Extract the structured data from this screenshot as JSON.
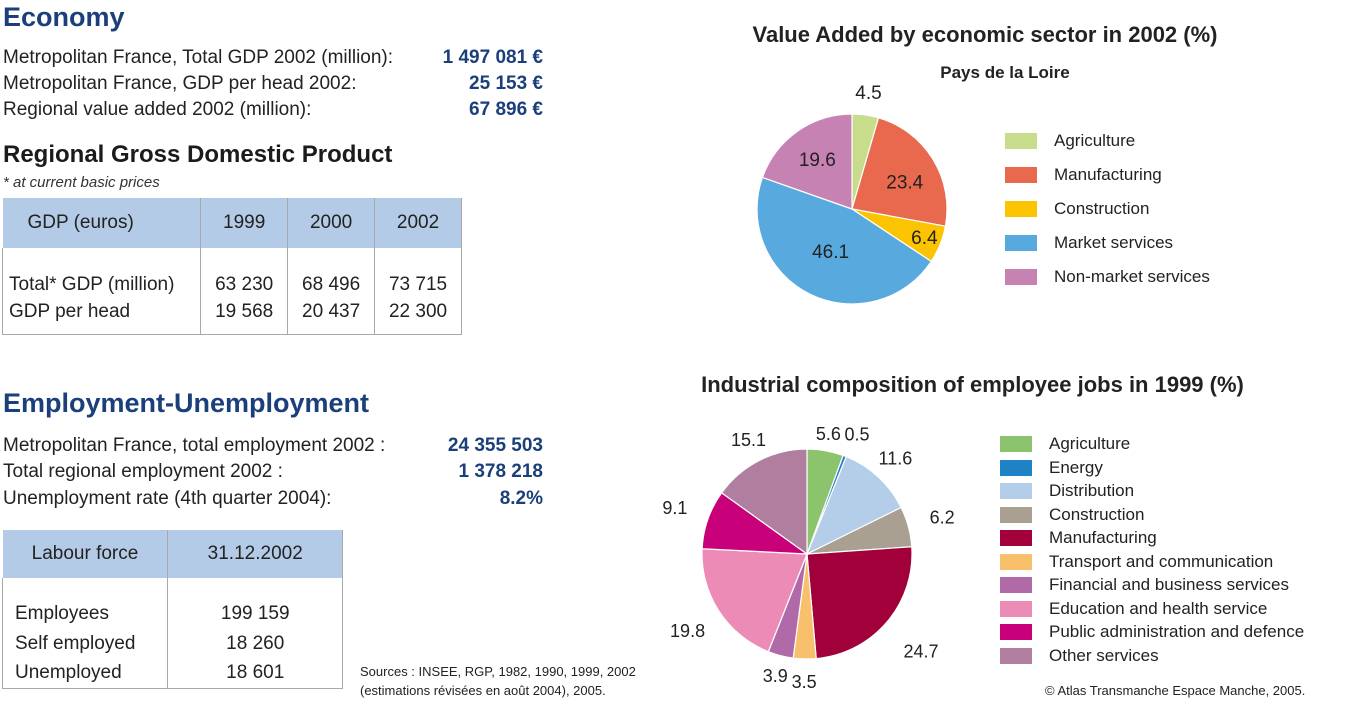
{
  "economy": {
    "title": "Economy",
    "rows": [
      {
        "label": "Metropolitan France, Total GDP 2002 (million):",
        "value": "1 497 081 €"
      },
      {
        "label": "Metropolitan France, GDP per head 2002:",
        "value": "25 153 €"
      },
      {
        "label": "Regional value added 2002 (million):",
        "value": "67 896 €"
      }
    ]
  },
  "gdp_table": {
    "title": "Regional Gross Domestic Product",
    "note": "* at current basic prices",
    "headers": [
      "GDP (euros)",
      "1999",
      "2000",
      "2002"
    ],
    "rows": [
      [
        "Total* GDP (million)",
        "63 230",
        "68 496",
        "73 715"
      ],
      [
        "GDP per head",
        "19 568",
        "20 437",
        "22 300"
      ]
    ]
  },
  "employment": {
    "title": "Employment-Unemployment",
    "rows": [
      {
        "label": "Metropolitan France, total employment 2002 :",
        "value": "24 355 503"
      },
      {
        "label": "Total regional employment 2002 :",
        "value": "1 378 218"
      },
      {
        "label": "Unemployment rate (4th quarter 2004):",
        "value": "8.2%"
      }
    ]
  },
  "labour_table": {
    "headers": [
      "Labour force",
      "31.12.2002"
    ],
    "rows": [
      [
        "Employees",
        "199 159"
      ],
      [
        "Self employed",
        "18 260"
      ],
      [
        "Unemployed",
        "18 601"
      ]
    ]
  },
  "sources": {
    "line1": "Sources : INSEE, RGP, 1982, 1990, 1999, 2002",
    "line2": "(estimations révisées en août 2004), 2005."
  },
  "copyright": "© Atlas Transmanche Espace Manche, 2005.",
  "chart_data": [
    {
      "type": "pie",
      "title": "Value Added by economic sector in 2002 (%)",
      "subtitle": "Pays de la Loire",
      "legend_position": "right",
      "slices": [
        {
          "name": "Agriculture",
          "value": 4.5,
          "label": "4.5",
          "color": "#c8dd8c"
        },
        {
          "name": "Manufacturing",
          "value": 23.4,
          "label": "23.4",
          "color": "#e8694e"
        },
        {
          "name": "Construction",
          "value": 6.4,
          "label": "6.4",
          "color": "#fcc300"
        },
        {
          "name": "Market services",
          "value": 46.1,
          "label": "46.1",
          "color": "#58a9dd"
        },
        {
          "name": "Non-market services",
          "value": 19.6,
          "label": "19.6",
          "color": "#c782b4"
        }
      ]
    },
    {
      "type": "pie",
      "title": "Industrial composition of employee jobs in 1999 (%)",
      "legend_position": "right",
      "slices": [
        {
          "name": "Agriculture",
          "value": 5.6,
          "label": "5.6",
          "color": "#8cc46e"
        },
        {
          "name": "Energy",
          "value": 0.5,
          "label": "0.5",
          "color": "#1f82c4"
        },
        {
          "name": "Distribution",
          "value": 11.6,
          "label": "11.6",
          "color": "#b4cde9"
        },
        {
          "name": "Construction",
          "value": 6.2,
          "label": "6.2",
          "color": "#a9a092"
        },
        {
          "name": "Manufacturing",
          "value": 24.7,
          "label": "24.7",
          "color": "#a1003b"
        },
        {
          "name": "Transport and communication",
          "value": 3.5,
          "label": "3.5",
          "color": "#f8bf6c"
        },
        {
          "name": "Financial and business services",
          "value": 3.9,
          "label": "3.9",
          "color": "#b16aa8"
        },
        {
          "name": "Education and health service",
          "value": 19.8,
          "label": "19.8",
          "color": "#ec8bb6"
        },
        {
          "name": "Public administration and defence",
          "value": 9.1,
          "label": "9.1",
          "color": "#c8007a"
        },
        {
          "name": "Other services",
          "value": 15.1,
          "label": "15.1",
          "color": "#b07e9f"
        }
      ]
    }
  ]
}
